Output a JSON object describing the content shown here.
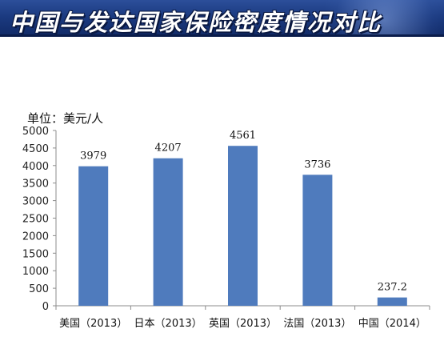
{
  "banner": {
    "title": "中国与发达国家保险密度情况对比"
  },
  "chart_data": {
    "type": "bar",
    "unit_label": "单位：美元/人",
    "categories": [
      "美国（2013）",
      "日本（2013）",
      "英国（2013）",
      "法国（2013）",
      "中国（2014）"
    ],
    "values": [
      3979,
      4207,
      4561,
      3736,
      237.2
    ],
    "data_labels": [
      "3979",
      "4207",
      "4561",
      "3736",
      "237.2"
    ],
    "ylim": [
      0,
      5000
    ],
    "yticks": [
      0,
      500,
      1000,
      1500,
      2000,
      2500,
      3000,
      3500,
      4000,
      4500,
      5000
    ],
    "bar_color": "#4f7bbd",
    "grid": false,
    "legend": "none"
  }
}
